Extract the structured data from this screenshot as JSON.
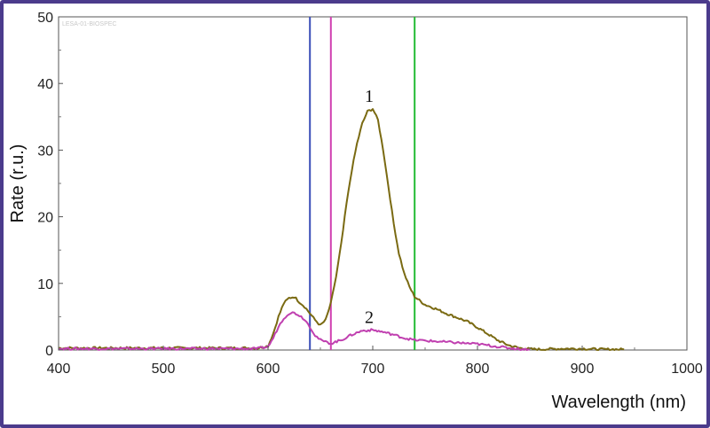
{
  "chart_data": {
    "type": "line",
    "watermark": "LESA-01-BIOSPEC",
    "xlabel": "Wavelength (nm)",
    "ylabel": "Rate (r.u.)",
    "xlim": [
      400,
      1000
    ],
    "ylim": [
      0,
      50
    ],
    "xticks": [
      400,
      500,
      600,
      700,
      800,
      900,
      1000
    ],
    "yticks": [
      0,
      10,
      20,
      30,
      40,
      50
    ],
    "grid": false,
    "legend": "none",
    "vertical_lines": [
      {
        "x": 640,
        "color": "#3b4fb8"
      },
      {
        "x": 660,
        "color": "#d040b0"
      },
      {
        "x": 740,
        "color": "#22bb33"
      }
    ],
    "series": [
      {
        "name": "1",
        "color": "#7a6a12",
        "x": [
          400,
          450,
          500,
          550,
          590,
          600,
          605,
          610,
          615,
          620,
          625,
          630,
          635,
          640,
          645,
          650,
          655,
          660,
          665,
          670,
          675,
          680,
          685,
          690,
          695,
          700,
          705,
          710,
          715,
          720,
          725,
          730,
          735,
          740,
          750,
          760,
          770,
          780,
          790,
          800,
          810,
          820,
          830,
          840,
          850,
          860,
          880,
          900,
          920,
          940
        ],
        "y": [
          0.3,
          0.3,
          0.3,
          0.3,
          0.3,
          0.6,
          2.5,
          5.0,
          7.0,
          7.8,
          8.0,
          7.2,
          6.5,
          5.5,
          4.5,
          3.7,
          4.5,
          7.0,
          11.0,
          16.0,
          22.0,
          27.0,
          31.0,
          34.0,
          35.8,
          36.2,
          34.5,
          30.0,
          24.5,
          19.0,
          14.5,
          11.5,
          9.5,
          8.0,
          6.8,
          6.2,
          5.5,
          4.9,
          4.3,
          3.4,
          2.4,
          1.4,
          0.7,
          0.3,
          0.15,
          0.1,
          0.2,
          0.2,
          0.1,
          0.1
        ]
      },
      {
        "name": "2",
        "color": "#c040b0",
        "x": [
          400,
          450,
          500,
          550,
          590,
          600,
          605,
          610,
          615,
          620,
          625,
          630,
          635,
          640,
          645,
          650,
          655,
          660,
          670,
          680,
          690,
          700,
          710,
          720,
          730,
          740,
          760,
          780,
          800,
          820,
          830,
          840,
          850
        ],
        "y": [
          0.2,
          0.2,
          0.2,
          0.2,
          0.2,
          0.5,
          1.8,
          3.5,
          4.8,
          5.5,
          5.6,
          5.2,
          4.6,
          3.5,
          2.2,
          1.5,
          1.2,
          1.0,
          1.5,
          2.3,
          2.9,
          3.0,
          2.7,
          2.3,
          1.8,
          1.5,
          1.3,
          1.1,
          0.9,
          0.5,
          0.3,
          0.15,
          0.05
        ]
      }
    ]
  }
}
